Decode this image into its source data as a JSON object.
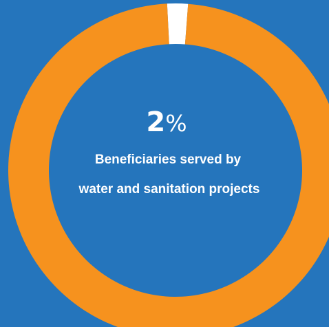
{
  "colors": {
    "background": "#2575BC",
    "ring": "#F6921E",
    "highlight": "#FFFFFF",
    "text": "#FFFFFF"
  },
  "chart_data": {
    "type": "pie",
    "style": "donut",
    "slices": [
      {
        "label": "Beneficiaries served by water and sanitation projects",
        "value": 2,
        "color": "#FFFFFF"
      },
      {
        "label": "",
        "value": 98,
        "color": "#F6921E"
      }
    ],
    "center_value": "2",
    "center_unit": "%",
    "caption_lines": [
      "Beneficiaries served by",
      "water and sanitation projects"
    ]
  }
}
